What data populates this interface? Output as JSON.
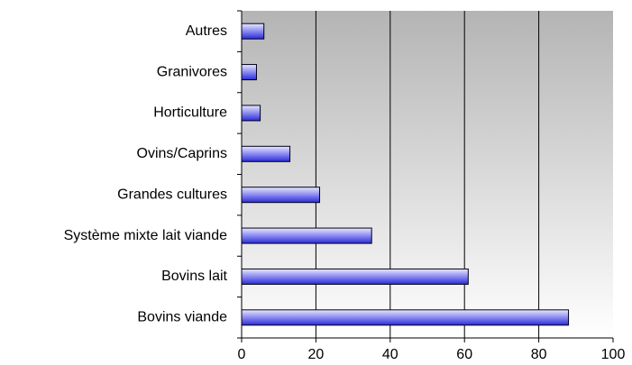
{
  "chart_data": {
    "type": "hbar",
    "categories": [
      "Autres",
      "Granivores",
      "Horticulture",
      "Ovins/Caprins",
      "Grandes cultures",
      "Système mixte lait viande",
      "Bovins lait",
      "Bovins viande"
    ],
    "values": [
      6,
      4,
      5,
      13,
      21,
      35,
      61,
      88
    ],
    "color": "#3333dd",
    "xlim": [
      0,
      100
    ],
    "xticks": [
      0,
      20,
      40,
      60,
      80,
      100
    ],
    "grid": true
  }
}
